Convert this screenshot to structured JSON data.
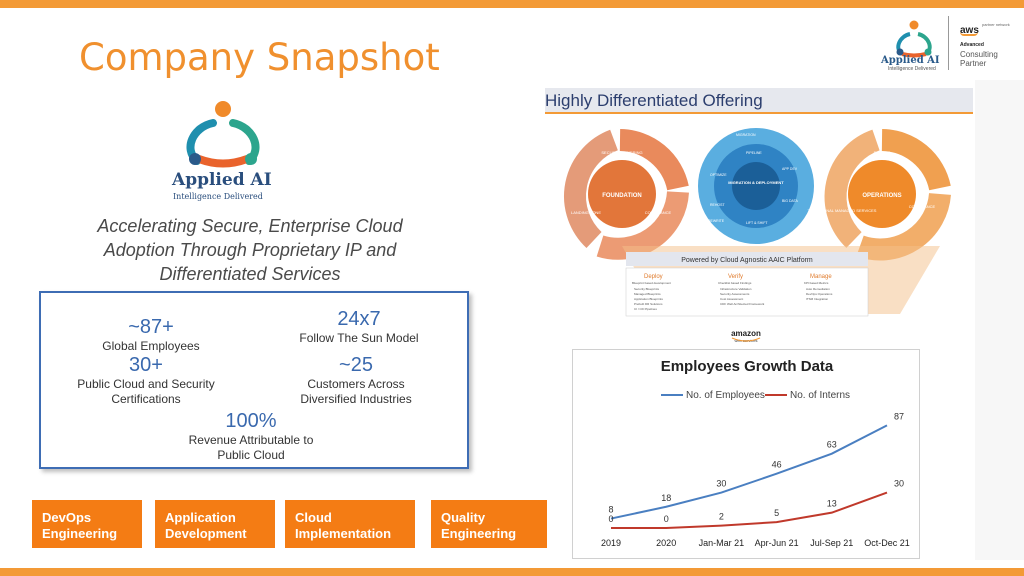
{
  "slide": {
    "title": "Company Snapshot"
  },
  "branding": {
    "company_name": "Applied AI",
    "company_tagline": "Intelligence Delivered",
    "partner": {
      "aws_word": "aws",
      "network": "partner network",
      "level": "Advanced",
      "tier": "Consulting Partner"
    }
  },
  "logo": {
    "name": "Applied AI",
    "sub": "Intelligence Delivered"
  },
  "tagline": "Accelerating Secure, Enterprise Cloud Adoption Through Proprietary IP and Differentiated Services",
  "stats": [
    {
      "value": "~87+",
      "label": "Global Employees"
    },
    {
      "value": "24x7",
      "label": "Follow The Sun Model"
    },
    {
      "value": "30+",
      "label": "Public Cloud and Security Certifications"
    },
    {
      "value": "~25",
      "label": "Customers Across Diversified Industries"
    },
    {
      "value": "100%",
      "label": "Revenue Attributable to Public Cloud"
    }
  ],
  "services": [
    "DevOps Engineering",
    "Application Development",
    "Cloud Implementation",
    "Quality Engineering"
  ],
  "offering": {
    "heading": "Highly Differentiated Offering",
    "rings": {
      "foundation": {
        "center": "FOUNDATION",
        "segments": [
          "SECURITY LAYERING",
          "COMPLIANCE",
          "LANDING ZONE"
        ]
      },
      "migration": {
        "center": "MIGRATION & DEPLOYMENT",
        "segments": [
          "MIGRATION",
          "PIPELINE",
          "APP DEV",
          "BIG DATA",
          "LIFT & SHIFT",
          "REWRITE",
          "REHOST",
          "OPTIMIZE"
        ]
      },
      "operations": {
        "center": "OPERATIONS",
        "segments": [
          "DEVOPS",
          "COMPLIANCE",
          "TRADITIONAL MANAGED SERVICES"
        ]
      }
    },
    "platform_banner": "Powered by Cloud Agnostic AAIC Platform",
    "platform_columns": [
      {
        "name": "Deploy",
        "sub": "Blueprint based development",
        "items": [
          "Security Blueprints",
          "Managed Blueprints",
          "Application Blueprints",
          "Prebuilt DR Solutions",
          "CI / CD Pipelines"
        ]
      },
      {
        "name": "Verify",
        "sub": "Checklist based Findings",
        "items": [
          "Infrastructure Validation",
          "Security Assessments",
          "Cost Assessment",
          "CDF Well Architected Framework"
        ]
      },
      {
        "name": "Manage",
        "sub": "KPI based Metrics",
        "items": [
          "Auto Remediation",
          "DevOps Operations",
          "ITSM Integration"
        ]
      }
    ],
    "aws_logo": "amazon",
    "aws_logo_sub": "web services"
  },
  "chart_data": {
    "type": "line",
    "title": "Employees Growth Data",
    "categories": [
      "2019",
      "2020",
      "Jan-Mar 21",
      "Apr-Jun 21",
      "Jul-Sep 21",
      "Oct-Dec 21"
    ],
    "series": [
      {
        "name": "No. of Employees",
        "values": [
          8,
          18,
          30,
          46,
          63,
          87
        ],
        "color": "#4a7fc1"
      },
      {
        "name": "No. of Interns",
        "values": [
          0,
          0,
          2,
          5,
          13,
          30
        ],
        "color": "#c0392b"
      }
    ],
    "ylim": [
      0,
      100
    ],
    "grid": false,
    "legend": "top"
  },
  "colors": {
    "accent": "#f39a36",
    "tile": "#f47c14",
    "stat_blue": "#3a69ae"
  }
}
